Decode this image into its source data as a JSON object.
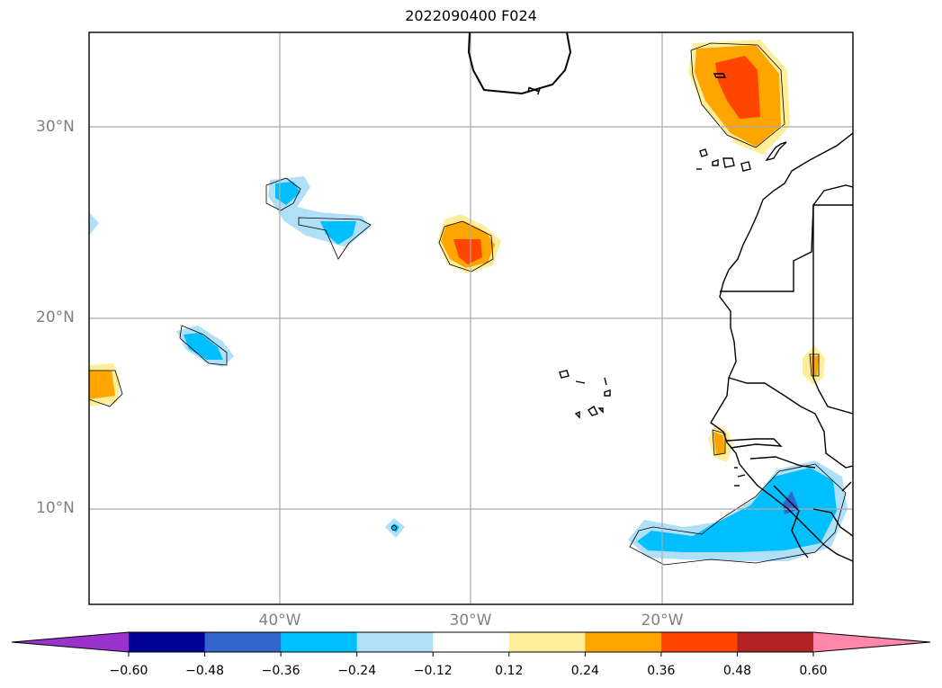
{
  "title": "2022090400 F024",
  "map": {
    "lon_range": [
      -50,
      -10
    ],
    "lat_range": [
      5,
      35
    ],
    "gridlines": true,
    "lat_ticks": [
      {
        "value": 30,
        "label": "30°N"
      },
      {
        "value": 20,
        "label": "20°N"
      },
      {
        "value": 10,
        "label": "10°N"
      }
    ],
    "lon_ticks": [
      {
        "value": -40,
        "label": "40°W"
      },
      {
        "value": -30,
        "label": "30°W"
      },
      {
        "value": -20,
        "label": "20°W"
      }
    ],
    "contour_label": "1"
  },
  "colorbar": {
    "extend": "both",
    "under_color": "#9933cc",
    "over_color": "#ff88aa",
    "colors": [
      "#000099",
      "#3366cc",
      "#00bfff",
      "#b0e0f8",
      "#ffffff",
      "#ffee99",
      "#ffa500",
      "#ff4500",
      "#b22222"
    ],
    "boundaries": [
      -0.6,
      -0.48,
      -0.36,
      -0.24,
      -0.12,
      0.12,
      0.24,
      0.36,
      0.48,
      0.6
    ],
    "tick_labels": [
      "−0.60",
      "−0.48",
      "−0.36",
      "−0.24",
      "−0.12",
      "0.12",
      "0.24",
      "0.36",
      "0.48",
      "0.60"
    ]
  }
}
